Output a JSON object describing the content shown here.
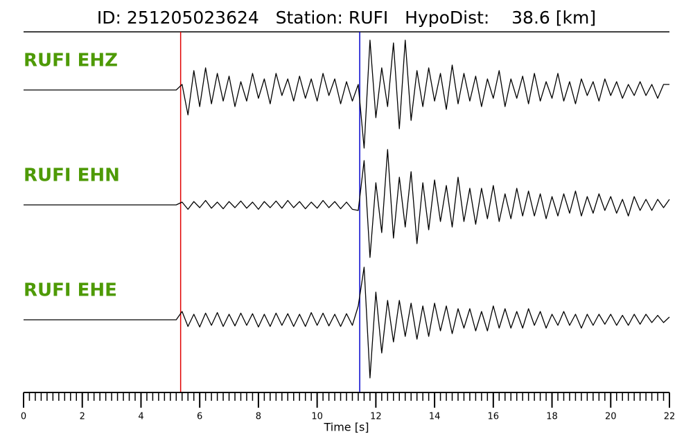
{
  "chart_data": {
    "type": "seismogram",
    "title": "ID: 251205023624   Station: RUFI   HypoDist:    38.6 [km]",
    "xlabel": "Time [s]",
    "xlim": [
      0,
      22
    ],
    "xticks": [
      0,
      2,
      4,
      6,
      8,
      10,
      12,
      14,
      16,
      18,
      20,
      22
    ],
    "xminor_step": 0.2,
    "label_color": "#4e9a06",
    "trace_color": "#000000",
    "picks": [
      {
        "time": 5.35,
        "color": "#e00000"
      },
      {
        "time": 11.45,
        "color": "#0000cc"
      }
    ],
    "x": [
      0,
      5.2,
      5.4,
      5.6,
      5.8,
      6,
      6.2,
      6.4,
      6.6,
      6.8,
      7,
      7.2,
      7.4,
      7.6,
      7.8,
      8,
      8.2,
      8.4,
      8.6,
      8.8,
      9,
      9.2,
      9.4,
      9.6,
      9.8,
      10,
      10.2,
      10.4,
      10.6,
      10.8,
      11,
      11.2,
      11.4,
      11.6,
      11.8,
      12,
      12.2,
      12.4,
      12.6,
      12.8,
      13,
      13.2,
      13.4,
      13.6,
      13.8,
      14,
      14.2,
      14.4,
      14.6,
      14.8,
      15,
      15.2,
      15.4,
      15.6,
      15.8,
      16,
      16.2,
      16.4,
      16.6,
      16.8,
      17,
      17.2,
      17.4,
      17.6,
      17.8,
      18,
      18.2,
      18.4,
      18.6,
      18.8,
      19,
      19.2,
      19.4,
      19.6,
      19.8,
      20,
      20.2,
      20.4,
      20.6,
      20.8,
      21,
      21.2,
      21.4,
      21.6,
      21.8,
      22
    ],
    "series": [
      {
        "name": "RUFI EHZ",
        "values": [
          0,
          0,
          0.1,
          -0.45,
          0.35,
          -0.3,
          0.4,
          -0.25,
          0.3,
          -0.2,
          0.25,
          -0.3,
          0.15,
          -0.2,
          0.3,
          -0.15,
          0.2,
          -0.25,
          0.3,
          -0.1,
          0.2,
          -0.2,
          0.25,
          -0.15,
          0.2,
          -0.2,
          0.3,
          -0.1,
          0.2,
          -0.25,
          0.15,
          -0.2,
          0.1,
          -1.05,
          0.9,
          -0.5,
          0.4,
          -0.3,
          0.85,
          -0.7,
          0.9,
          -0.55,
          0.35,
          -0.3,
          0.4,
          -0.2,
          0.3,
          -0.35,
          0.45,
          -0.25,
          0.3,
          -0.2,
          0.25,
          -0.3,
          0.2,
          -0.15,
          0.35,
          -0.3,
          0.2,
          -0.15,
          0.25,
          -0.25,
          0.3,
          -0.2,
          0.15,
          -0.15,
          0.3,
          -0.2,
          0.15,
          -0.25,
          0.2,
          -0.1,
          0.15,
          -0.2,
          0.2,
          -0.1,
          0.15,
          -0.15,
          0.1,
          -0.1,
          0.15,
          -0.1,
          0.1,
          -0.15,
          0.1,
          0.1
        ]
      },
      {
        "name": "RUFI EHN",
        "values": [
          0,
          0,
          0.05,
          -0.08,
          0.06,
          -0.05,
          0.08,
          -0.06,
          0.05,
          -0.07,
          0.06,
          -0.05,
          0.07,
          -0.06,
          0.05,
          -0.08,
          0.06,
          -0.05,
          0.07,
          -0.06,
          0.08,
          -0.05,
          0.06,
          -0.07,
          0.05,
          -0.06,
          0.08,
          -0.05,
          0.06,
          -0.07,
          0.05,
          -0.08,
          -0.1,
          0.8,
          -0.95,
          0.4,
          -0.5,
          1.0,
          -0.6,
          0.5,
          -0.4,
          0.6,
          -0.7,
          0.4,
          -0.45,
          0.45,
          -0.3,
          0.35,
          -0.4,
          0.5,
          -0.3,
          0.3,
          -0.35,
          0.3,
          -0.25,
          0.35,
          -0.3,
          0.2,
          -0.25,
          0.3,
          -0.2,
          0.25,
          -0.2,
          0.2,
          -0.25,
          0.15,
          -0.2,
          0.2,
          -0.15,
          0.25,
          -0.2,
          0.15,
          -0.15,
          0.2,
          -0.1,
          0.15,
          -0.15,
          0.1,
          -0.2,
          0.15,
          -0.1,
          0.1,
          -0.1,
          0.1,
          -0.05,
          0.1
        ]
      },
      {
        "name": "RUFI EHE",
        "values": [
          0,
          0,
          0.15,
          -0.12,
          0.1,
          -0.13,
          0.12,
          -0.1,
          0.13,
          -0.12,
          0.1,
          -0.11,
          0.12,
          -0.1,
          0.11,
          -0.13,
          0.1,
          -0.12,
          0.12,
          -0.1,
          0.11,
          -0.12,
          0.1,
          -0.12,
          0.13,
          -0.1,
          0.12,
          -0.11,
          0.1,
          -0.12,
          0.11,
          -0.1,
          0.25,
          0.95,
          -1.05,
          0.5,
          -0.6,
          0.35,
          -0.4,
          0.35,
          -0.3,
          0.3,
          -0.35,
          0.25,
          -0.3,
          0.3,
          -0.2,
          0.25,
          -0.25,
          0.2,
          -0.15,
          0.2,
          -0.2,
          0.15,
          -0.2,
          0.25,
          -0.15,
          0.2,
          -0.15,
          0.15,
          -0.15,
          0.2,
          -0.1,
          0.15,
          -0.15,
          0.1,
          -0.1,
          0.15,
          -0.1,
          0.1,
          -0.15,
          0.1,
          -0.1,
          0.1,
          -0.08,
          0.1,
          -0.1,
          0.08,
          -0.1,
          0.1,
          -0.08,
          0.1,
          -0.05,
          0.08,
          -0.05,
          0.05
        ]
      }
    ]
  }
}
